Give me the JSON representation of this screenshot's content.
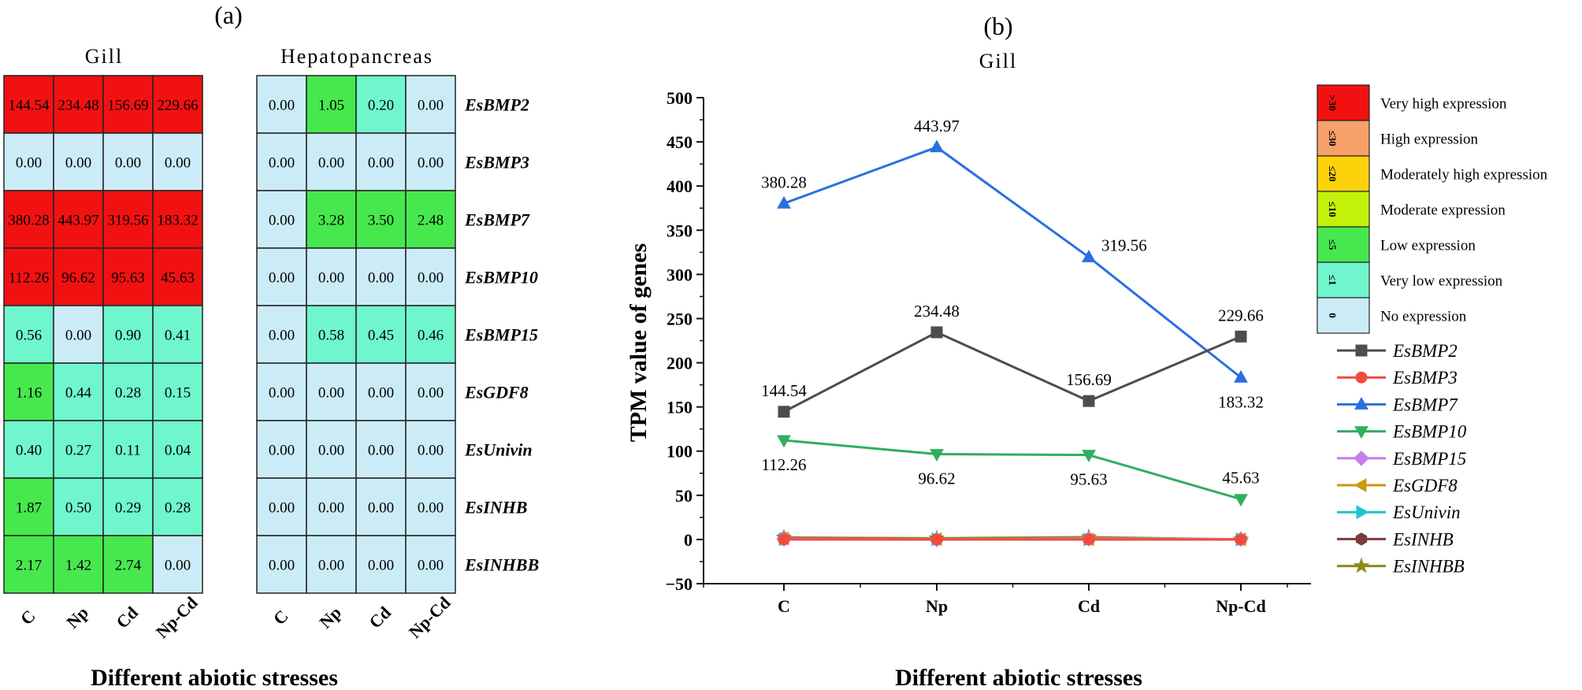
{
  "panel_a_label": "(a)",
  "panel_b_label": "(b)",
  "colors": {
    "very_high": "#f21111",
    "high": "#f8a06a",
    "moderately_high": "#fdd20b",
    "moderate": "#c4f10a",
    "low": "#47e84e",
    "very_low": "#6ff6cd",
    "none": "#cbecf7",
    "grid_stroke": "#222222"
  },
  "chart_data": [
    {
      "type": "heatmap",
      "title": "Gill",
      "xlabel": "Different abiotic stresses",
      "x_categories": [
        "C",
        "Np",
        "Cd",
        "Np-Cd"
      ],
      "y_categories": [
        "EsBMP2",
        "EsBMP3",
        "EsBMP7",
        "EsBMP10",
        "EsBMP15",
        "EsGDF8",
        "EsUnivin",
        "EsINHB",
        "EsINHBB"
      ],
      "values": [
        [
          "144.54",
          "234.48",
          "156.69",
          "229.66"
        ],
        [
          "0.00",
          "0.00",
          "0.00",
          "0.00"
        ],
        [
          "380.28",
          "443.97",
          "319.56",
          "183.32"
        ],
        [
          "112.26",
          "96.62",
          "95.63",
          "45.63"
        ],
        [
          "0.56",
          "0.00",
          "0.90",
          "0.41"
        ],
        [
          "1.16",
          "0.44",
          "0.28",
          "0.15"
        ],
        [
          "0.40",
          "0.27",
          "0.11",
          "0.04"
        ],
        [
          "1.87",
          "0.50",
          "0.29",
          "0.28"
        ],
        [
          "2.17",
          "1.42",
          "2.74",
          "0.00"
        ]
      ]
    },
    {
      "type": "heatmap",
      "title": "Hepatopancreas",
      "xlabel": "Different abiotic stresses",
      "x_categories": [
        "C",
        "Np",
        "Cd",
        "Np-Cd"
      ],
      "y_categories": [
        "EsBMP2",
        "EsBMP3",
        "EsBMP7",
        "EsBMP10",
        "EsBMP15",
        "EsGDF8",
        "EsUnivin",
        "EsINHB",
        "EsINHBB"
      ],
      "values": [
        [
          "0.00",
          "1.05",
          "0.20",
          "0.00"
        ],
        [
          "0.00",
          "0.00",
          "0.00",
          "0.00"
        ],
        [
          "0.00",
          "3.28",
          "3.50",
          "2.48"
        ],
        [
          "0.00",
          "0.00",
          "0.00",
          "0.00"
        ],
        [
          "0.00",
          "0.58",
          "0.45",
          "0.46"
        ],
        [
          "0.00",
          "0.00",
          "0.00",
          "0.00"
        ],
        [
          "0.00",
          "0.00",
          "0.00",
          "0.00"
        ],
        [
          "0.00",
          "0.00",
          "0.00",
          "0.00"
        ],
        [
          "0.00",
          "0.00",
          "0.00",
          "0.00"
        ]
      ]
    },
    {
      "type": "line",
      "title": "Gill",
      "xlabel": "Different abiotic stresses",
      "ylabel": "TPM value of genes",
      "categories": [
        "C",
        "Np",
        "Cd",
        "Np-Cd"
      ],
      "ylim": [
        -50,
        500
      ],
      "yticks": [
        -50,
        0,
        50,
        100,
        150,
        200,
        250,
        300,
        350,
        400,
        450,
        500
      ],
      "series": [
        {
          "name": "EsBMP2",
          "values": [
            144.54,
            234.48,
            156.69,
            229.66
          ],
          "color": "#4d4d4d",
          "marker": "square"
        },
        {
          "name": "EsBMP3",
          "values": [
            0,
            0,
            0,
            0
          ],
          "color": "#f24a40",
          "marker": "circle"
        },
        {
          "name": "EsBMP7",
          "values": [
            380.28,
            443.97,
            319.56,
            183.32
          ],
          "color": "#2a6fe0",
          "marker": "triangle-up"
        },
        {
          "name": "EsBMP10",
          "values": [
            112.26,
            96.62,
            95.63,
            45.63
          ],
          "color": "#2fae60",
          "marker": "triangle-down"
        },
        {
          "name": "EsBMP15",
          "values": [
            0.56,
            0,
            0.9,
            0.41
          ],
          "color": "#c77ee8",
          "marker": "diamond"
        },
        {
          "name": "EsGDF8",
          "values": [
            1.16,
            0.44,
            0.28,
            0.15
          ],
          "color": "#c99a11",
          "marker": "triangle-left"
        },
        {
          "name": "EsUnivin",
          "values": [
            0.4,
            0.27,
            0.11,
            0.04
          ],
          "color": "#1fc4cf",
          "marker": "triangle-right"
        },
        {
          "name": "EsINHB",
          "values": [
            1.87,
            0.5,
            0.29,
            0.28
          ],
          "color": "#7a3b3b",
          "marker": "hexagon"
        },
        {
          "name": "EsINHBB",
          "values": [
            2.17,
            1.42,
            2.74,
            0
          ],
          "color": "#8f8a1a",
          "marker": "star"
        }
      ],
      "data_labels": [
        {
          "series": "EsBMP7",
          "index": 0,
          "text": "380.28",
          "pos": "above"
        },
        {
          "series": "EsBMP7",
          "index": 1,
          "text": "443.97",
          "pos": "above"
        },
        {
          "series": "EsBMP7",
          "index": 2,
          "text": "319.56",
          "pos": "right"
        },
        {
          "series": "EsBMP7",
          "index": 3,
          "text": "183.32",
          "pos": "below"
        },
        {
          "series": "EsBMP2",
          "index": 0,
          "text": "144.54",
          "pos": "above"
        },
        {
          "series": "EsBMP2",
          "index": 1,
          "text": "234.48",
          "pos": "above"
        },
        {
          "series": "EsBMP2",
          "index": 2,
          "text": "156.69",
          "pos": "above"
        },
        {
          "series": "EsBMP2",
          "index": 3,
          "text": "229.66",
          "pos": "above"
        },
        {
          "series": "EsBMP10",
          "index": 0,
          "text": "112.26",
          "pos": "below"
        },
        {
          "series": "EsBMP10",
          "index": 1,
          "text": "96.62",
          "pos": "below"
        },
        {
          "series": "EsBMP10",
          "index": 2,
          "text": "95.63",
          "pos": "below"
        },
        {
          "series": "EsBMP10",
          "index": 3,
          "text": "45.63",
          "pos": "above"
        }
      ]
    }
  ],
  "expression_legend": [
    {
      "label": "Very high expression",
      "threshold": ">30",
      "color_key": "very_high"
    },
    {
      "label": "High expression",
      "threshold": "≤30",
      "color_key": "high"
    },
    {
      "label": "Moderately high expression",
      "threshold": "≤20",
      "color_key": "moderately_high"
    },
    {
      "label": "Moderate expression",
      "threshold": "≤10",
      "color_key": "moderate"
    },
    {
      "label": "Low expression",
      "threshold": "≤5",
      "color_key": "low"
    },
    {
      "label": "Very low expression",
      "threshold": "≤1",
      "color_key": "very_low"
    },
    {
      "label": "No expression",
      "threshold": "0",
      "color_key": "none"
    }
  ]
}
